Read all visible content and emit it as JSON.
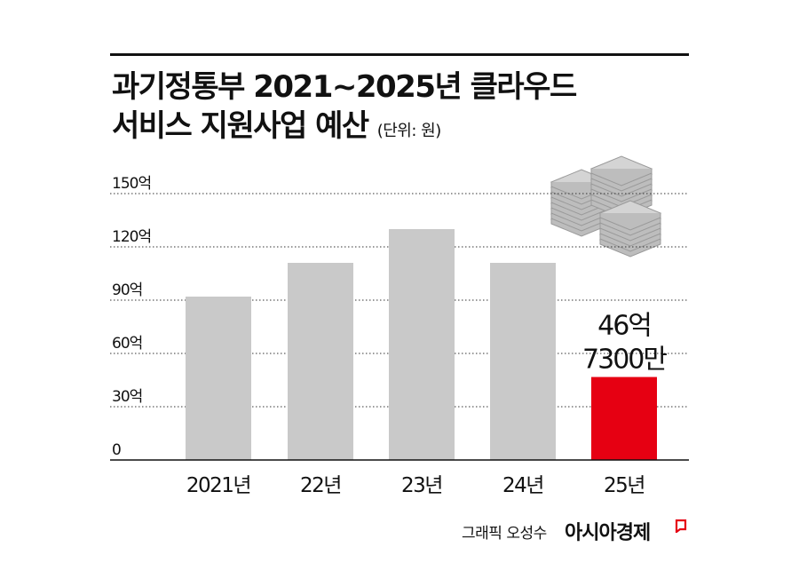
{
  "header": {
    "title_line1": "과기정통부 2021~2025년 클라우드",
    "title_line2": "서비스 지원사업 예산",
    "unit": "(단위: 원)"
  },
  "chart_data": {
    "type": "bar",
    "title": "과기정통부 2021~2025년 클라우드 서비스 지원사업 예산",
    "unit": "(단위: 원)",
    "categories": [
      "2021년",
      "22년",
      "23년",
      "24년",
      "25년"
    ],
    "values": [
      92,
      111,
      130,
      111,
      46.73
    ],
    "highlight_index": 4,
    "bar_color": "#c9c9c9",
    "highlight_color": "#e60012",
    "ylim": [
      0,
      150
    ],
    "yticks": [
      0,
      30,
      60,
      90,
      120,
      150
    ],
    "ytick_labels": [
      "0",
      "30억",
      "60억",
      "90억",
      "120억",
      "150억"
    ],
    "grid": true,
    "annotation": [
      "46억",
      "7300만"
    ]
  },
  "footer": {
    "credit": "그래픽 오성수",
    "brand": "아시아경제"
  }
}
